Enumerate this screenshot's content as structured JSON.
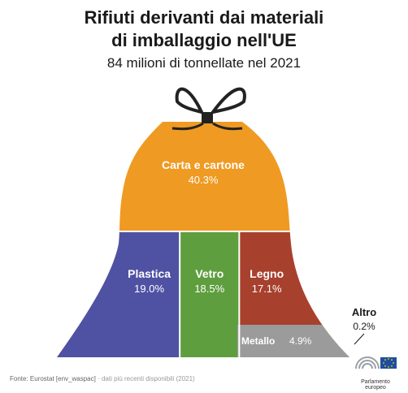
{
  "header": {
    "title_line1": "Rifiuti derivanti dai materiali",
    "title_line2": "di imballaggio nell'UE",
    "subtitle": "84 milioni di tonnellate nel 2021"
  },
  "chart_data": {
    "type": "area",
    "title": "Rifiuti derivanti dai materiali di imballaggio nell'UE",
    "subtitle": "84 milioni di tonnellate nel 2021",
    "unit": "%",
    "categories": [
      "Carta e cartone",
      "Plastica",
      "Vetro",
      "Legno",
      "Metallo",
      "Altro"
    ],
    "values": [
      40.3,
      19.0,
      18.5,
      17.1,
      4.9,
      0.2
    ],
    "labels": [
      "40.3%",
      "19.0%",
      "18.5%",
      "17.1%",
      "4.9%",
      "0.2%"
    ],
    "colors": [
      "#ef9a22",
      "#4f52a3",
      "#5e9e3e",
      "#a8402e",
      "#9b9b9b",
      "#ffffff"
    ]
  },
  "footer": {
    "source_label": "Fonte: Eurostat [env_waspac]",
    "source_note": "· dati più recenti disponibili (2021)",
    "logo_text": "Parlamento europeo",
    "logo_icon": "european-parliament-logo-icon"
  }
}
